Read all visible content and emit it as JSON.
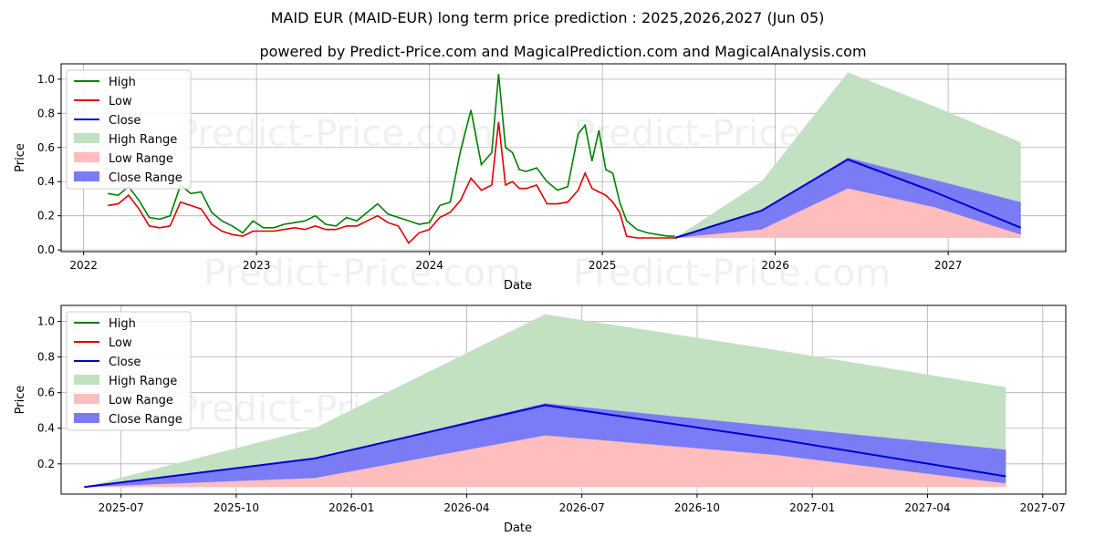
{
  "title": "MAID EUR (MAID-EUR) long term price prediction : 2025,2026,2027 (Jun 05)",
  "subtitle": "powered by Predict-Price.com and MagicalPrediction.com and MagicalAnalysis.com",
  "watermark": "Predict-Price.com",
  "colors": {
    "high": "#008000",
    "low": "#e00000",
    "close": "#0000cc",
    "high_range": "#c2e0c2",
    "low_range": "#ffbdbd",
    "close_range": "#7b7bf6"
  },
  "legend": {
    "items": [
      "High",
      "Low",
      "Close",
      "High Range",
      "Low Range",
      "Close Range"
    ]
  },
  "chart_data": [
    {
      "type": "line",
      "name": "history-and-forecast",
      "xlabel": "Date",
      "ylabel": "Price",
      "xlim": [
        2021.87,
        2027.68
      ],
      "ylim": [
        -0.01,
        1.09
      ],
      "grid": true,
      "legend_position": "top-left",
      "x_ticks": [
        2022,
        2023,
        2024,
        2025,
        2026,
        2027
      ],
      "x_tick_labels": [
        "2022",
        "2023",
        "2024",
        "2025",
        "2026",
        "2027"
      ],
      "y_ticks": [
        0.0,
        0.2,
        0.4,
        0.6,
        0.8,
        1.0
      ],
      "y_tick_labels": [
        "0.0",
        "0.2",
        "0.4",
        "0.6",
        "0.8",
        "1.0"
      ],
      "history": {
        "x": [
          2022.14,
          2022.2,
          2022.26,
          2022.32,
          2022.38,
          2022.44,
          2022.5,
          2022.56,
          2022.62,
          2022.68,
          2022.74,
          2022.8,
          2022.86,
          2022.92,
          2022.98,
          2023.04,
          2023.1,
          2023.16,
          2023.22,
          2023.28,
          2023.34,
          2023.4,
          2023.46,
          2023.52,
          2023.58,
          2023.64,
          2023.7,
          2023.76,
          2023.82,
          2023.88,
          2023.94,
          2024.0,
          2024.06,
          2024.12,
          2024.18,
          2024.24,
          2024.3,
          2024.36,
          2024.4,
          2024.44,
          2024.48,
          2024.52,
          2024.56,
          2024.62,
          2024.68,
          2024.74,
          2024.8,
          2024.86,
          2024.9,
          2024.94,
          2024.98,
          2025.02,
          2025.06,
          2025.1,
          2025.14,
          2025.2,
          2025.26,
          2025.32,
          2025.38,
          2025.42
        ],
        "high": [
          0.33,
          0.32,
          0.37,
          0.29,
          0.19,
          0.18,
          0.2,
          0.38,
          0.33,
          0.34,
          0.22,
          0.17,
          0.14,
          0.1,
          0.17,
          0.13,
          0.13,
          0.15,
          0.16,
          0.17,
          0.2,
          0.15,
          0.14,
          0.19,
          0.17,
          0.22,
          0.27,
          0.21,
          0.19,
          0.17,
          0.15,
          0.16,
          0.26,
          0.28,
          0.58,
          0.82,
          0.5,
          0.57,
          1.03,
          0.6,
          0.57,
          0.47,
          0.46,
          0.48,
          0.4,
          0.35,
          0.37,
          0.68,
          0.73,
          0.52,
          0.7,
          0.47,
          0.45,
          0.28,
          0.17,
          0.12,
          0.1,
          0.09,
          0.08,
          0.08
        ],
        "low": [
          0.26,
          0.27,
          0.32,
          0.24,
          0.14,
          0.13,
          0.14,
          0.28,
          0.26,
          0.24,
          0.15,
          0.11,
          0.09,
          0.08,
          0.11,
          0.11,
          0.11,
          0.12,
          0.13,
          0.12,
          0.14,
          0.12,
          0.12,
          0.14,
          0.14,
          0.17,
          0.2,
          0.16,
          0.14,
          0.04,
          0.1,
          0.12,
          0.19,
          0.22,
          0.29,
          0.42,
          0.35,
          0.38,
          0.75,
          0.38,
          0.4,
          0.36,
          0.36,
          0.38,
          0.27,
          0.27,
          0.28,
          0.35,
          0.45,
          0.36,
          0.34,
          0.32,
          0.28,
          0.22,
          0.08,
          0.07,
          0.07,
          0.07,
          0.07,
          0.07
        ]
      },
      "forecast": {
        "x": [
          2025.42,
          2025.92,
          2026.42,
          2026.92,
          2027.42
        ],
        "close": [
          0.07,
          0.23,
          0.53,
          0.34,
          0.13
        ],
        "high_range_upper": [
          0.07,
          0.4,
          1.04,
          0.84,
          0.63
        ],
        "high_range_lower": [
          0.07,
          0.07,
          0.07,
          0.07,
          0.07
        ],
        "low_range_upper": [
          0.07,
          0.12,
          0.36,
          0.25,
          0.09
        ],
        "low_range_lower": [
          0.07,
          0.07,
          0.07,
          0.07,
          0.07
        ],
        "close_range_upper": [
          0.07,
          0.23,
          0.54,
          0.41,
          0.28
        ],
        "close_range_lower": [
          0.07,
          0.12,
          0.36,
          0.25,
          0.09
        ]
      }
    },
    {
      "type": "line",
      "name": "forecast-zoom",
      "xlabel": "Date",
      "ylabel": "Price",
      "xlim": [
        2025.37,
        2027.55
      ],
      "ylim": [
        0.03,
        1.09
      ],
      "grid": true,
      "legend_position": "top-left",
      "x_ticks": [
        2025.5,
        2025.75,
        2026.0,
        2026.25,
        2026.5,
        2026.75,
        2027.0,
        2027.25,
        2027.5
      ],
      "x_tick_labels": [
        "2025-07",
        "2025-10",
        "2026-01",
        "2026-04",
        "2026-07",
        "2026-10",
        "2027-01",
        "2027-04",
        "2027-07"
      ],
      "y_ticks": [
        0.2,
        0.4,
        0.6,
        0.8,
        1.0
      ],
      "y_tick_labels": [
        "0.2",
        "0.4",
        "0.6",
        "0.8",
        "1.0"
      ],
      "forecast": {
        "x": [
          2025.42,
          2025.92,
          2026.42,
          2026.92,
          2027.42
        ],
        "close": [
          0.07,
          0.23,
          0.53,
          0.34,
          0.13
        ],
        "high_range_upper": [
          0.07,
          0.4,
          1.04,
          0.84,
          0.63
        ],
        "high_range_lower": [
          0.07,
          0.07,
          0.07,
          0.07,
          0.07
        ],
        "low_range_upper": [
          0.07,
          0.12,
          0.36,
          0.25,
          0.09
        ],
        "low_range_lower": [
          0.07,
          0.07,
          0.07,
          0.07,
          0.07
        ],
        "close_range_upper": [
          0.07,
          0.23,
          0.54,
          0.41,
          0.28
        ],
        "close_range_lower": [
          0.07,
          0.12,
          0.36,
          0.25,
          0.09
        ]
      }
    }
  ]
}
